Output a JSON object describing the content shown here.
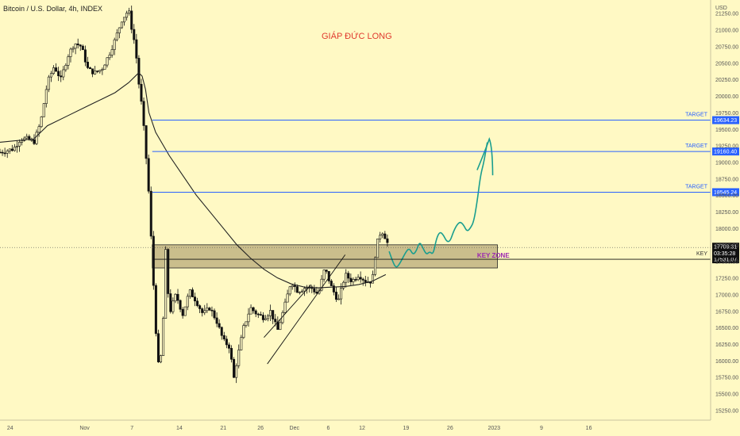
{
  "header": {
    "title": "Bitcoin / U.S. Dollar, 4h, INDEX",
    "author": "GIÁP ĐỨC LONG"
  },
  "colors": {
    "background": "#fff9c4",
    "up": "#1a1a1a",
    "down": "#1a1a1a",
    "ma": "#222222",
    "target": "#2962ff",
    "projection": "#1a9e8f",
    "zone": "#b4a575"
  },
  "chart_data": {
    "type": "candlestick",
    "title": "Bitcoin / U.S. Dollar, 4h, INDEX",
    "ylabel": "USD",
    "ylim": [
      15100,
      21450
    ],
    "y_ticks": [
      15250,
      15500,
      15750,
      16000,
      16250,
      16500,
      16750,
      17000,
      17250,
      17500,
      17750,
      18000,
      18250,
      18500,
      18750,
      19000,
      19250,
      19500,
      19750,
      20000,
      20250,
      20500,
      20750,
      21000,
      21250
    ],
    "x_ticks": [
      "24",
      "Nov",
      "7",
      "14",
      "21",
      "26",
      "Dec",
      "6",
      "12",
      "19",
      "26",
      "2023",
      "9",
      "16"
    ],
    "targets": [
      {
        "label": "TARGET",
        "value": "19634.23"
      },
      {
        "label": "TARGET",
        "value": "19160.40"
      },
      {
        "label": "TARGET",
        "value": "18545.24"
      }
    ],
    "key_line": {
      "label": "KEY",
      "value": "17531.07"
    },
    "current_price": {
      "value": "17709.31",
      "countdown": "03:35:28"
    },
    "key_zone": {
      "label": "KEY ZONE",
      "from": 17400,
      "to": 17750
    },
    "price_path": [
      [
        -0.05,
        19150
      ],
      [
        -0.03,
        19200
      ],
      [
        -0.02,
        19350
      ],
      [
        -0.01,
        19350
      ],
      [
        0.0,
        19300
      ],
      [
        0.01,
        19600
      ],
      [
        0.02,
        20200
      ],
      [
        0.03,
        20450
      ],
      [
        0.04,
        20250
      ],
      [
        0.05,
        20600
      ],
      [
        0.06,
        20800
      ],
      [
        0.07,
        20750
      ],
      [
        0.08,
        20400
      ],
      [
        0.09,
        20350
      ],
      [
        0.1,
        20400
      ],
      [
        0.11,
        20600
      ],
      [
        0.12,
        20850
      ],
      [
        0.13,
        21150
      ],
      [
        0.14,
        21300
      ],
      [
        0.145,
        21000
      ],
      [
        0.15,
        20750
      ],
      [
        0.155,
        20200
      ],
      [
        0.16,
        19800
      ],
      [
        0.165,
        19200
      ],
      [
        0.17,
        18500
      ],
      [
        0.175,
        17500
      ],
      [
        0.18,
        16500
      ],
      [
        0.185,
        15800
      ],
      [
        0.19,
        16300
      ],
      [
        0.195,
        17700
      ],
      [
        0.2,
        16700
      ],
      [
        0.21,
        17000
      ],
      [
        0.22,
        16700
      ],
      [
        0.23,
        17050
      ],
      [
        0.24,
        16900
      ],
      [
        0.25,
        16700
      ],
      [
        0.26,
        16800
      ],
      [
        0.27,
        16600
      ],
      [
        0.28,
        16300
      ],
      [
        0.29,
        16200
      ],
      [
        0.295,
        15700
      ],
      [
        0.3,
        16000
      ],
      [
        0.31,
        16500
      ],
      [
        0.32,
        16800
      ],
      [
        0.33,
        16700
      ],
      [
        0.34,
        16650
      ],
      [
        0.35,
        16750
      ],
      [
        0.36,
        16450
      ],
      [
        0.37,
        16800
      ],
      [
        0.38,
        17200
      ],
      [
        0.39,
        17050
      ],
      [
        0.4,
        17100
      ],
      [
        0.41,
        17100
      ],
      [
        0.42,
        17000
      ],
      [
        0.43,
        17400
      ],
      [
        0.44,
        17100
      ],
      [
        0.45,
        16900
      ],
      [
        0.46,
        17300
      ],
      [
        0.47,
        17200
      ],
      [
        0.48,
        17300
      ],
      [
        0.49,
        17200
      ],
      [
        0.5,
        17200
      ],
      [
        0.505,
        17650
      ],
      [
        0.51,
        17900
      ],
      [
        0.515,
        17950
      ],
      [
        0.52,
        17850
      ],
      [
        0.525,
        17700
      ]
    ],
    "ma_path": [
      [
        -0.05,
        19300
      ],
      [
        0.0,
        19350
      ],
      [
        0.02,
        19550
      ],
      [
        0.05,
        19700
      ],
      [
        0.08,
        19850
      ],
      [
        0.1,
        19950
      ],
      [
        0.12,
        20050
      ],
      [
        0.14,
        20200
      ],
      [
        0.155,
        20350
      ],
      [
        0.16,
        20300
      ],
      [
        0.165,
        20100
      ],
      [
        0.17,
        19750
      ],
      [
        0.18,
        19450
      ],
      [
        0.2,
        19100
      ],
      [
        0.22,
        18800
      ],
      [
        0.24,
        18500
      ],
      [
        0.26,
        18250
      ],
      [
        0.28,
        18000
      ],
      [
        0.3,
        17750
      ],
      [
        0.32,
        17550
      ],
      [
        0.34,
        17380
      ],
      [
        0.36,
        17250
      ],
      [
        0.38,
        17160
      ],
      [
        0.4,
        17110
      ],
      [
        0.42,
        17100
      ],
      [
        0.44,
        17110
      ],
      [
        0.46,
        17120
      ],
      [
        0.48,
        17150
      ],
      [
        0.5,
        17200
      ],
      [
        0.52,
        17300
      ]
    ],
    "projection_path": [
      [
        0.525,
        17650
      ],
      [
        0.53,
        17500
      ],
      [
        0.535,
        17400
      ],
      [
        0.54,
        17450
      ],
      [
        0.55,
        17650
      ],
      [
        0.555,
        17700
      ],
      [
        0.56,
        17600
      ],
      [
        0.565,
        17650
      ],
      [
        0.57,
        17800
      ],
      [
        0.575,
        17700
      ],
      [
        0.58,
        17600
      ],
      [
        0.585,
        17650
      ],
      [
        0.59,
        17600
      ],
      [
        0.595,
        17850
      ],
      [
        0.6,
        17950
      ],
      [
        0.605,
        17900
      ],
      [
        0.61,
        17800
      ],
      [
        0.615,
        17800
      ],
      [
        0.62,
        17950
      ],
      [
        0.625,
        18050
      ],
      [
        0.63,
        18100
      ],
      [
        0.635,
        18050
      ],
      [
        0.64,
        17950
      ],
      [
        0.645,
        18000
      ],
      [
        0.65,
        18100
      ],
      [
        0.655,
        18400
      ],
      [
        0.66,
        18800
      ],
      [
        0.665,
        19000
      ],
      [
        0.67,
        19300
      ]
    ],
    "projection_tail": [
      [
        0.655,
        18880
      ],
      [
        0.668,
        19200
      ],
      [
        0.673,
        19350
      ],
      [
        0.678,
        18800
      ]
    ],
    "trendlines": [
      [
        [
          0.34,
          16350
        ],
        [
          0.41,
          17150
        ]
      ],
      [
        [
          0.345,
          15950
        ],
        [
          0.46,
          17600
        ]
      ]
    ]
  }
}
